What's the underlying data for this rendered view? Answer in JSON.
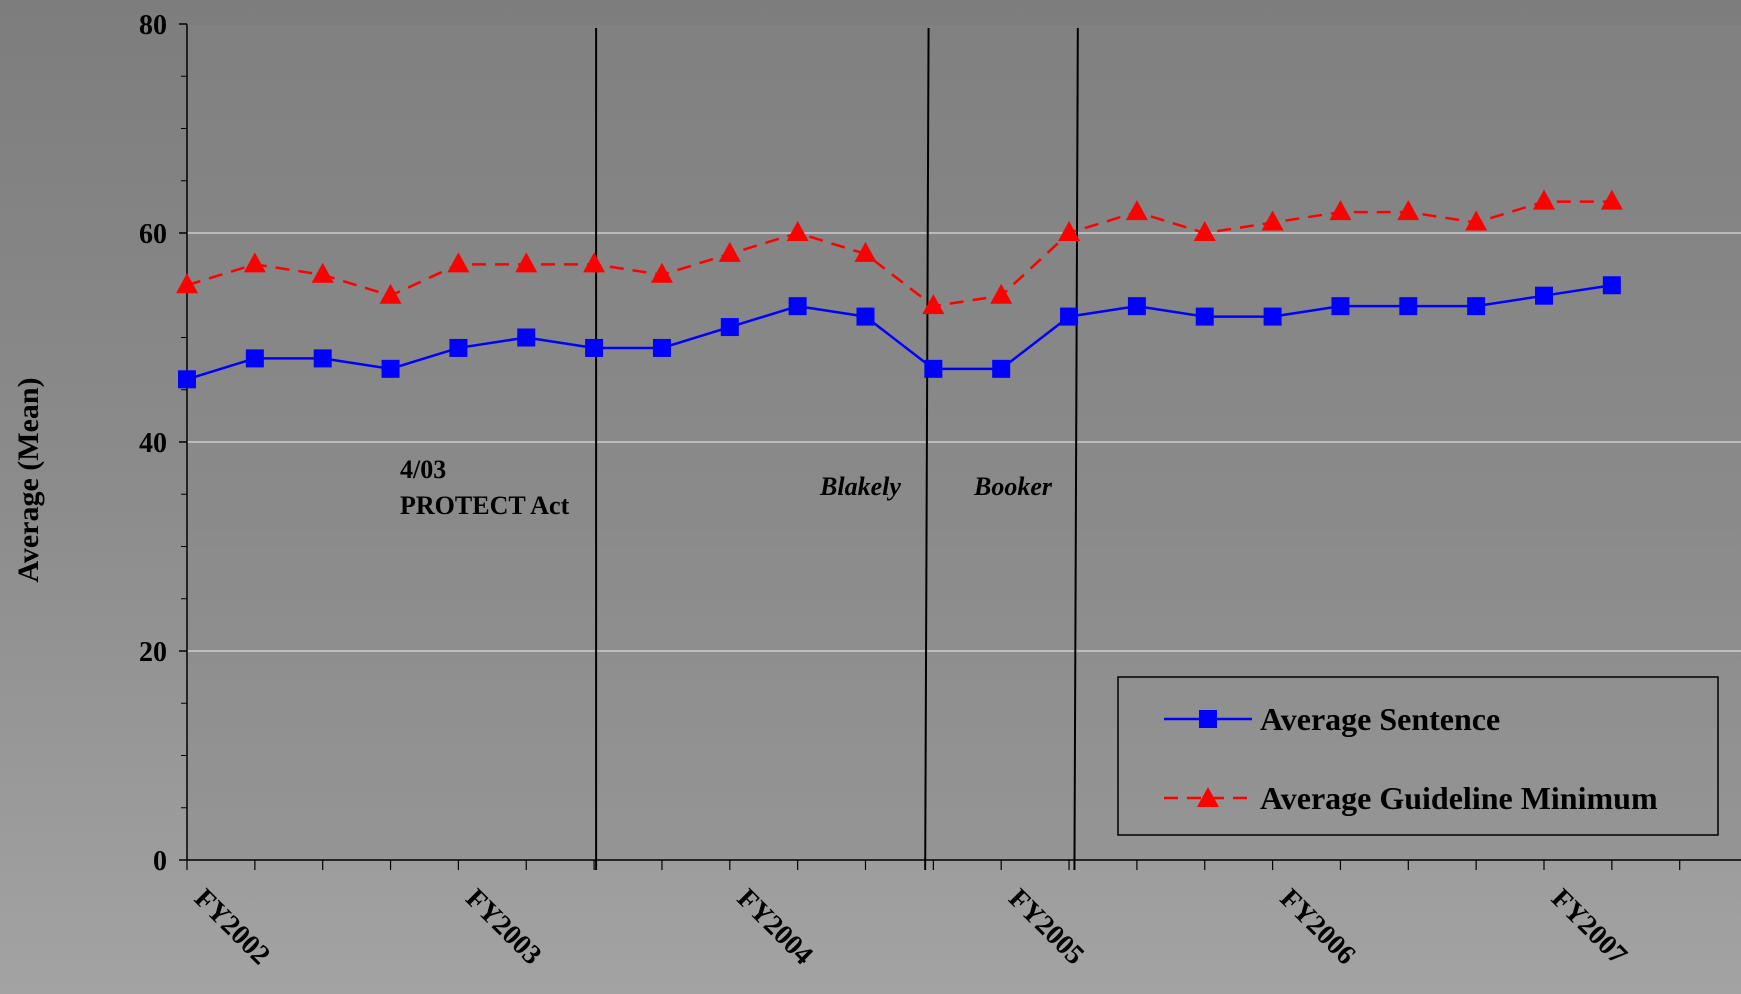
{
  "chart_data": {
    "type": "line",
    "ylabel": "Average (Mean)",
    "ylim": [
      0,
      80
    ],
    "yticks": [
      "0",
      "20",
      "40",
      "60",
      "80"
    ],
    "x_tick_labels": [
      "FY2002",
      "FY2003",
      "FY2004",
      "FY2005",
      "FY2006",
      "FY2007"
    ],
    "series": [
      {
        "name": "Average Sentence",
        "color": "#0000ff",
        "marker": "square",
        "line": "solid",
        "values": [
          46,
          48,
          48,
          47,
          49,
          50,
          49,
          49,
          51,
          53,
          52,
          47,
          47,
          52,
          53,
          52,
          52,
          53,
          53,
          53,
          54,
          55
        ]
      },
      {
        "name": "Average Guideline Minimum",
        "color": "#ff0000",
        "marker": "triangle",
        "line": "dashed",
        "values": [
          55,
          57,
          56,
          54,
          57,
          57,
          57,
          56,
          58,
          60,
          58,
          53,
          54,
          60,
          62,
          60,
          61,
          62,
          62,
          61,
          63,
          63
        ]
      }
    ],
    "grid": "horizontal",
    "legend": "bottom-right",
    "annotations": [
      {
        "line1": "4/03",
        "line2": "PROTECT Act",
        "style": "bold"
      },
      {
        "text": "Blakely",
        "style": "bold-italic"
      },
      {
        "text": "Booker",
        "style": "bold-italic"
      }
    ]
  }
}
